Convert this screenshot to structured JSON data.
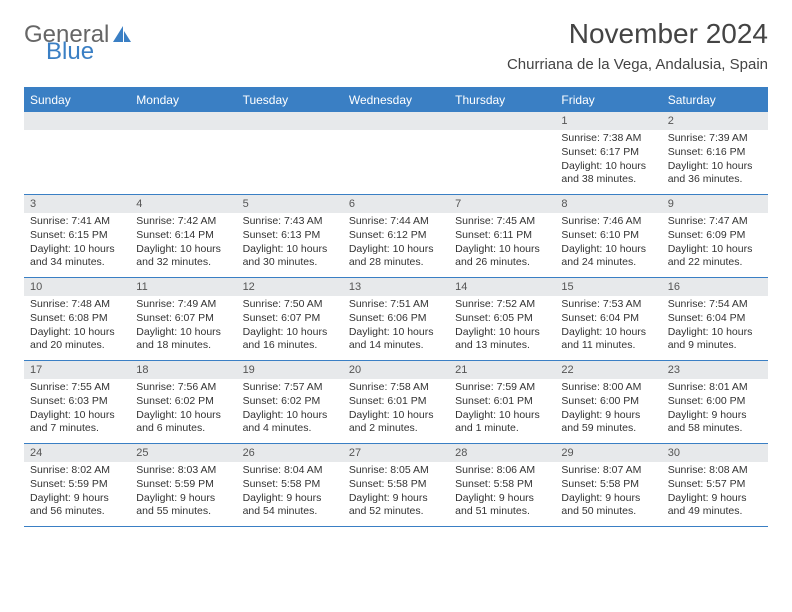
{
  "brand": {
    "part1": "General",
    "part2": "Blue"
  },
  "title": "November 2024",
  "location": "Churriana de la Vega, Andalusia, Spain",
  "weekdays": [
    "Sunday",
    "Monday",
    "Tuesday",
    "Wednesday",
    "Thursday",
    "Friday",
    "Saturday"
  ],
  "colors": {
    "accent": "#3a7fc4",
    "band": "#e7e9eb",
    "text": "#333333",
    "title": "#444444",
    "logo_gray": "#666666"
  },
  "fonts": {
    "title_size_pt": 28,
    "location_size_pt": 15,
    "weekday_size_pt": 12,
    "cell_size_pt": 10.5
  },
  "layout": {
    "cols": 7,
    "rows": 5,
    "first_weekday_index": 5,
    "days_in_month": 30
  },
  "days": [
    {
      "n": 1,
      "sr": "7:38 AM",
      "ss": "6:17 PM",
      "dl": "10 hours and 38 minutes."
    },
    {
      "n": 2,
      "sr": "7:39 AM",
      "ss": "6:16 PM",
      "dl": "10 hours and 36 minutes."
    },
    {
      "n": 3,
      "sr": "7:41 AM",
      "ss": "6:15 PM",
      "dl": "10 hours and 34 minutes."
    },
    {
      "n": 4,
      "sr": "7:42 AM",
      "ss": "6:14 PM",
      "dl": "10 hours and 32 minutes."
    },
    {
      "n": 5,
      "sr": "7:43 AM",
      "ss": "6:13 PM",
      "dl": "10 hours and 30 minutes."
    },
    {
      "n": 6,
      "sr": "7:44 AM",
      "ss": "6:12 PM",
      "dl": "10 hours and 28 minutes."
    },
    {
      "n": 7,
      "sr": "7:45 AM",
      "ss": "6:11 PM",
      "dl": "10 hours and 26 minutes."
    },
    {
      "n": 8,
      "sr": "7:46 AM",
      "ss": "6:10 PM",
      "dl": "10 hours and 24 minutes."
    },
    {
      "n": 9,
      "sr": "7:47 AM",
      "ss": "6:09 PM",
      "dl": "10 hours and 22 minutes."
    },
    {
      "n": 10,
      "sr": "7:48 AM",
      "ss": "6:08 PM",
      "dl": "10 hours and 20 minutes."
    },
    {
      "n": 11,
      "sr": "7:49 AM",
      "ss": "6:07 PM",
      "dl": "10 hours and 18 minutes."
    },
    {
      "n": 12,
      "sr": "7:50 AM",
      "ss": "6:07 PM",
      "dl": "10 hours and 16 minutes."
    },
    {
      "n": 13,
      "sr": "7:51 AM",
      "ss": "6:06 PM",
      "dl": "10 hours and 14 minutes."
    },
    {
      "n": 14,
      "sr": "7:52 AM",
      "ss": "6:05 PM",
      "dl": "10 hours and 13 minutes."
    },
    {
      "n": 15,
      "sr": "7:53 AM",
      "ss": "6:04 PM",
      "dl": "10 hours and 11 minutes."
    },
    {
      "n": 16,
      "sr": "7:54 AM",
      "ss": "6:04 PM",
      "dl": "10 hours and 9 minutes."
    },
    {
      "n": 17,
      "sr": "7:55 AM",
      "ss": "6:03 PM",
      "dl": "10 hours and 7 minutes."
    },
    {
      "n": 18,
      "sr": "7:56 AM",
      "ss": "6:02 PM",
      "dl": "10 hours and 6 minutes."
    },
    {
      "n": 19,
      "sr": "7:57 AM",
      "ss": "6:02 PM",
      "dl": "10 hours and 4 minutes."
    },
    {
      "n": 20,
      "sr": "7:58 AM",
      "ss": "6:01 PM",
      "dl": "10 hours and 2 minutes."
    },
    {
      "n": 21,
      "sr": "7:59 AM",
      "ss": "6:01 PM",
      "dl": "10 hours and 1 minute."
    },
    {
      "n": 22,
      "sr": "8:00 AM",
      "ss": "6:00 PM",
      "dl": "9 hours and 59 minutes."
    },
    {
      "n": 23,
      "sr": "8:01 AM",
      "ss": "6:00 PM",
      "dl": "9 hours and 58 minutes."
    },
    {
      "n": 24,
      "sr": "8:02 AM",
      "ss": "5:59 PM",
      "dl": "9 hours and 56 minutes."
    },
    {
      "n": 25,
      "sr": "8:03 AM",
      "ss": "5:59 PM",
      "dl": "9 hours and 55 minutes."
    },
    {
      "n": 26,
      "sr": "8:04 AM",
      "ss": "5:58 PM",
      "dl": "9 hours and 54 minutes."
    },
    {
      "n": 27,
      "sr": "8:05 AM",
      "ss": "5:58 PM",
      "dl": "9 hours and 52 minutes."
    },
    {
      "n": 28,
      "sr": "8:06 AM",
      "ss": "5:58 PM",
      "dl": "9 hours and 51 minutes."
    },
    {
      "n": 29,
      "sr": "8:07 AM",
      "ss": "5:58 PM",
      "dl": "9 hours and 50 minutes."
    },
    {
      "n": 30,
      "sr": "8:08 AM",
      "ss": "5:57 PM",
      "dl": "9 hours and 49 minutes."
    }
  ],
  "labels": {
    "sunrise": "Sunrise:",
    "sunset": "Sunset:",
    "daylight": "Daylight:"
  }
}
